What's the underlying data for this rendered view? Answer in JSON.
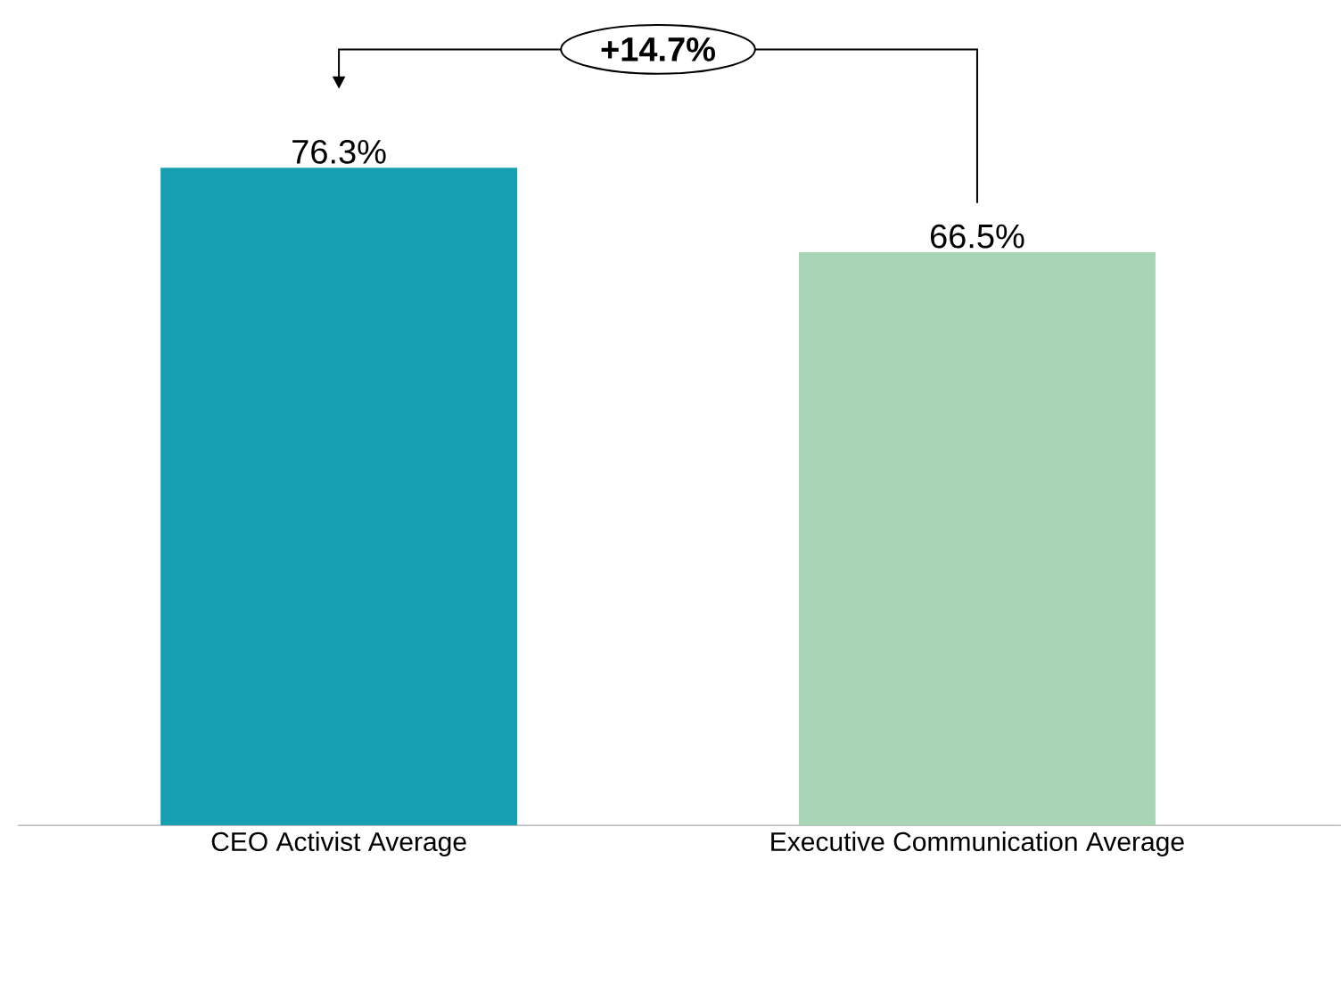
{
  "chart_data": {
    "type": "bar",
    "categories": [
      "CEO Activist Average",
      "Executive Communication Average"
    ],
    "values": [
      76.3,
      66.5
    ],
    "colors": [
      "#169fb0",
      "#a9d5b7"
    ],
    "value_labels": [
      "76.3%",
      "66.5%"
    ],
    "annotations": [
      "+14.7%"
    ]
  }
}
